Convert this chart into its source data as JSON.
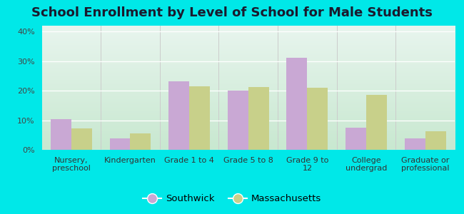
{
  "title": "School Enrollment by Level of School for Male Students",
  "categories": [
    "Nursery,\npreschool",
    "Kindergarten",
    "Grade 1 to 4",
    "Grade 5 to 8",
    "Grade 9 to\n12",
    "College\nundergrad",
    "Graduate or\nprofessional"
  ],
  "southwick": [
    10.3,
    3.9,
    23.2,
    20.1,
    31.2,
    7.5,
    3.9
  ],
  "massachusetts": [
    7.2,
    5.5,
    21.4,
    21.2,
    20.9,
    18.5,
    6.2
  ],
  "southwick_color": "#c9a8d4",
  "massachusetts_color": "#c8d08a",
  "background_outer": "#00e8e8",
  "bg_top": "#e8f5ee",
  "bg_bottom": "#c8e8d0",
  "ylim": [
    0,
    42
  ],
  "yticks": [
    0,
    10,
    20,
    30,
    40
  ],
  "ytick_labels": [
    "0%",
    "10%",
    "20%",
    "30%",
    "40%"
  ],
  "legend_southwick": "Southwick",
  "legend_massachusetts": "Massachusetts",
  "title_fontsize": 13,
  "tick_fontsize": 8,
  "legend_fontsize": 9.5,
  "bar_width": 0.35
}
